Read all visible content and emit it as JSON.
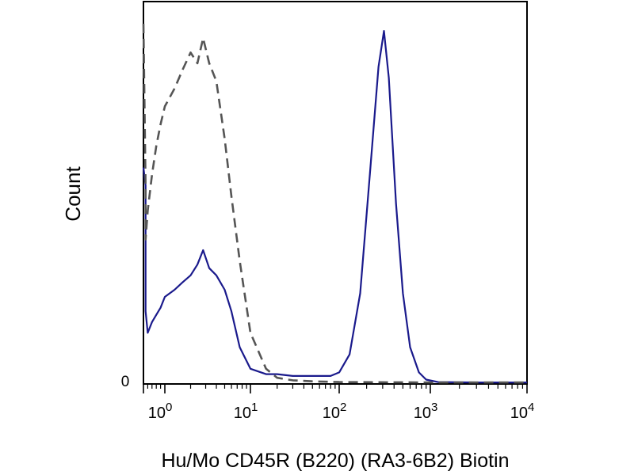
{
  "chart_data": {
    "type": "line",
    "title": "",
    "xlabel": "Hu/Mo CD45R (B220) (RA3-6B2) Biotin",
    "ylabel": "Count",
    "x_scale": "biexponential (log decades with linear region near zero)",
    "y_zero_label": "0",
    "xticks": [
      {
        "base": "10",
        "exp": "0"
      },
      {
        "base": "10",
        "exp": "1"
      },
      {
        "base": "10",
        "exp": "2"
      },
      {
        "base": "10",
        "exp": "3"
      },
      {
        "base": "10",
        "exp": "4"
      }
    ],
    "ylim": [
      0,
      100
    ],
    "grid": false,
    "legend": "none",
    "series": [
      {
        "style": "solid",
        "color": "#1a1a8c",
        "points": [
          [
            0,
            60
          ],
          [
            0.1,
            55
          ],
          [
            0.1,
            20
          ],
          [
            0.2,
            14
          ],
          [
            0.4,
            17
          ],
          [
            0.6,
            19
          ],
          [
            0.8,
            21
          ],
          [
            1.0,
            24
          ],
          [
            1.3,
            26
          ],
          [
            1.6,
            28
          ],
          [
            2.0,
            30
          ],
          [
            2.4,
            33
          ],
          [
            2.8,
            37
          ],
          [
            3.3,
            32
          ],
          [
            4.0,
            30
          ],
          [
            5.0,
            26
          ],
          [
            6.0,
            20
          ],
          [
            7.5,
            10
          ],
          [
            10,
            4
          ],
          [
            15,
            2.5
          ],
          [
            20,
            2.5
          ],
          [
            30,
            2
          ],
          [
            50,
            2
          ],
          [
            80,
            2
          ],
          [
            100,
            3
          ],
          [
            130,
            8
          ],
          [
            170,
            25
          ],
          [
            220,
            60
          ],
          [
            270,
            88
          ],
          [
            310,
            98
          ],
          [
            350,
            85
          ],
          [
            420,
            50
          ],
          [
            500,
            25
          ],
          [
            600,
            10
          ],
          [
            750,
            3
          ],
          [
            900,
            1
          ],
          [
            1200,
            0.3
          ],
          [
            3000,
            0.2
          ],
          [
            10000,
            0.2
          ]
        ]
      },
      {
        "style": "dashed",
        "color": "#555555",
        "points": [
          [
            0,
            100
          ],
          [
            0.1,
            55
          ],
          [
            0.1,
            40
          ],
          [
            0.2,
            48
          ],
          [
            0.4,
            58
          ],
          [
            0.6,
            66
          ],
          [
            0.8,
            72
          ],
          [
            1.0,
            77
          ],
          [
            1.3,
            82
          ],
          [
            1.6,
            87
          ],
          [
            2.0,
            92
          ],
          [
            2.4,
            89
          ],
          [
            2.8,
            96
          ],
          [
            3.3,
            89
          ],
          [
            4.0,
            84
          ],
          [
            5.0,
            68
          ],
          [
            6.0,
            52
          ],
          [
            7.5,
            34
          ],
          [
            10,
            14
          ],
          [
            15,
            4
          ],
          [
            20,
            1.5
          ],
          [
            30,
            0.8
          ],
          [
            50,
            0.5
          ],
          [
            100,
            0.3
          ],
          [
            1000,
            0.2
          ],
          [
            10000,
            0.2
          ]
        ]
      }
    ]
  }
}
